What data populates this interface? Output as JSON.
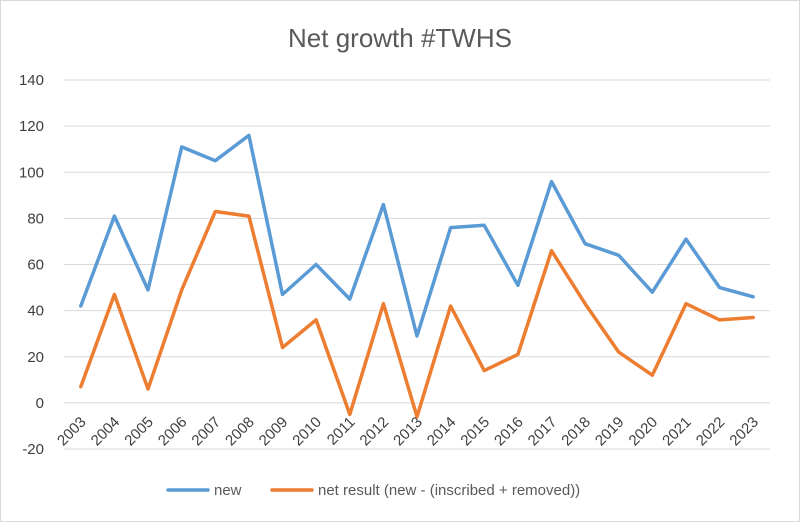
{
  "chart_data": {
    "type": "line",
    "title": "Net growth #TWHS",
    "xlabel": "",
    "ylabel": "",
    "categories": [
      "2003",
      "2004",
      "2005",
      "2006",
      "2007",
      "2008",
      "2009",
      "2010",
      "2011",
      "2012",
      "2013",
      "2014",
      "2015",
      "2016",
      "2017",
      "2018",
      "2019",
      "2020",
      "2021",
      "2022",
      "2023"
    ],
    "ylim": [
      -20,
      140
    ],
    "yticks": [
      -20,
      0,
      20,
      40,
      60,
      80,
      100,
      120,
      140
    ],
    "grid": true,
    "legend_position": "bottom",
    "series": [
      {
        "name": "new",
        "color": "#5b9bd5",
        "values": [
          42,
          81,
          49,
          111,
          105,
          116,
          47,
          60,
          45,
          86,
          29,
          76,
          77,
          51,
          96,
          69,
          64,
          48,
          71,
          50,
          46
        ]
      },
      {
        "name": "net result (new - (inscribed + removed))",
        "color": "#ed7d31",
        "values": [
          7,
          47,
          6,
          49,
          83,
          81,
          24,
          36,
          -5,
          43,
          -6,
          42,
          14,
          21,
          66,
          43,
          22,
          12,
          43,
          36,
          37
        ]
      }
    ]
  }
}
